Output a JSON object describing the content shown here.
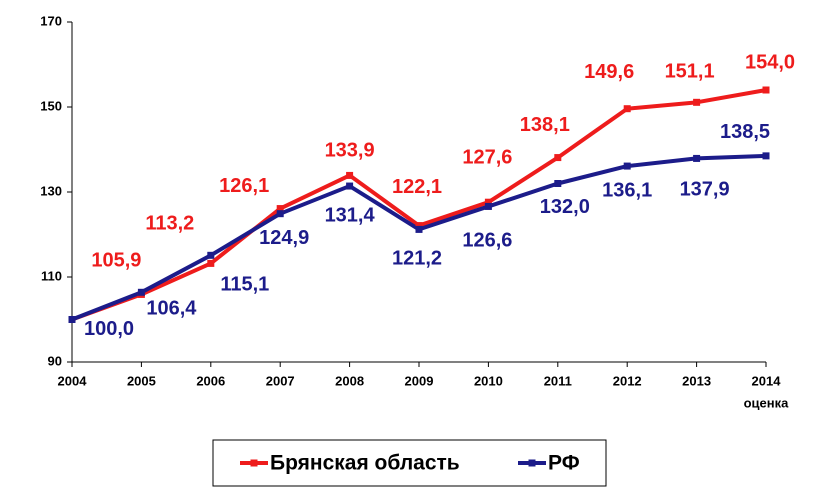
{
  "chart_data": {
    "type": "line",
    "categories": [
      "2004",
      "2005",
      "2006",
      "2007",
      "2008",
      "2009",
      "2010",
      "2011",
      "2012",
      "2013",
      "2014"
    ],
    "annotation": "оценка",
    "ylim": [
      90,
      170
    ],
    "yticks": [
      90,
      110,
      130,
      150,
      170
    ],
    "grid": false,
    "legend": "bottom",
    "series": [
      {
        "name": "Брянская область",
        "color": "#ee1c1c",
        "values": [
          100.0,
          105.9,
          113.2,
          126.1,
          133.9,
          122.1,
          127.6,
          138.1,
          149.6,
          151.1,
          154.0
        ],
        "value_labels": [
          null,
          "105,9",
          "113,2",
          "126,1",
          "133,9",
          "122,1",
          "127,6",
          "138,1",
          "149,6",
          "151,1",
          "154,0"
        ]
      },
      {
        "name": "РФ",
        "color": "#1c1c8a",
        "values": [
          100.0,
          106.4,
          115.1,
          124.9,
          131.4,
          121.2,
          126.6,
          132.0,
          136.1,
          137.9,
          138.5
        ],
        "value_labels": [
          "100,0",
          "106,4",
          "115,1",
          "124,9",
          "131,4",
          "121,2",
          "126,6",
          "132,0",
          "136,1",
          "137,9",
          "138,5"
        ]
      }
    ]
  }
}
